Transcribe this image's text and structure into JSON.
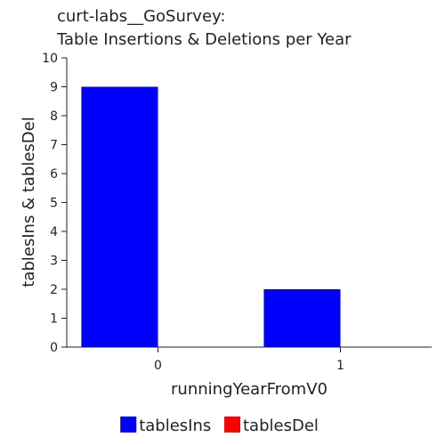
{
  "chart_data": {
    "type": "bar",
    "title_line1": "curt-labs__GoSurvey:",
    "title_line2": "Table Insertions & Deletions per Year",
    "xlabel": "runningYearFromV0",
    "ylabel": "tablesIns & tablesDel",
    "categories": [
      "0",
      "1"
    ],
    "series": [
      {
        "name": "tablesIns",
        "color": "#0000ff",
        "values": [
          9,
          2
        ]
      },
      {
        "name": "tablesDel",
        "color": "#ff0000",
        "values": [
          0,
          0
        ]
      }
    ],
    "ylim": [
      0,
      10
    ],
    "yticks": [
      "0",
      "1",
      "2",
      "3",
      "4",
      "5",
      "6",
      "7",
      "8",
      "9",
      "10"
    ],
    "grid": false,
    "legend_position": "bottom"
  }
}
